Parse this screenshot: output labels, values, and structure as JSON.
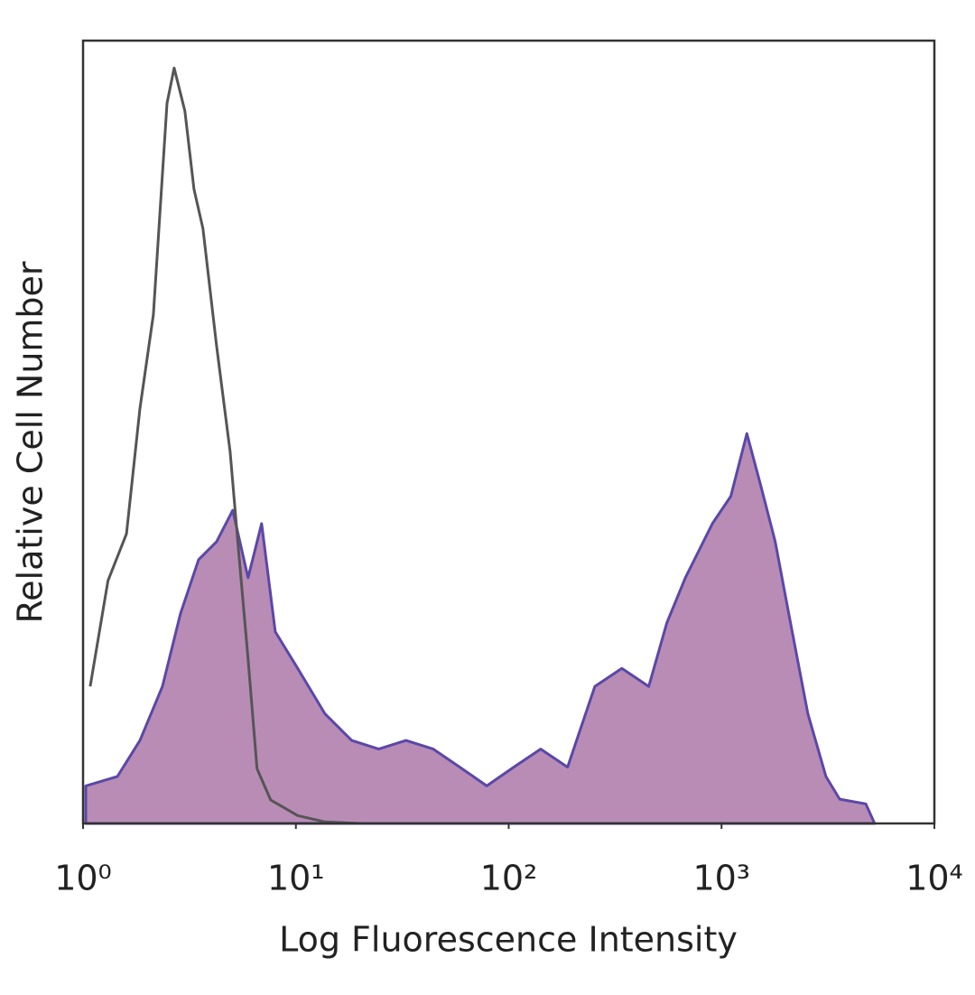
{
  "chart_data": {
    "type": "histogram-overlay",
    "xlabel": "Log Fluorescence Intensity",
    "ylabel": "Relative Cell Number",
    "xscale": "log",
    "xlim": [
      1,
      10000
    ],
    "ylim": [
      0,
      100
    ],
    "xticks": [
      {
        "value": 1,
        "label": "10⁰"
      },
      {
        "value": 10,
        "label": "10¹"
      },
      {
        "value": 100,
        "label": "10²"
      },
      {
        "value": 1000,
        "label": "10³"
      },
      {
        "value": 10000,
        "label": "10⁴"
      }
    ],
    "series": [
      {
        "color": "#5a48a8",
        "fill": "#b98cb6",
        "x": [
          1.03,
          1.45,
          1.85,
          2.36,
          2.87,
          3.49,
          4.24,
          5.05,
          5.96,
          6.9,
          8.0,
          10.2,
          13.7,
          18.3,
          24.5,
          32.9,
          44.2,
          58.9,
          78.9,
          105.6,
          141.3,
          189,
          254,
          340,
          455,
          553,
          676,
          906,
          1105,
          1315,
          1537,
          1788,
          2069,
          2546,
          3094,
          3590,
          4760,
          5236
        ],
        "values": [
          4.8,
          6,
          10.6,
          17.5,
          26.8,
          33.7,
          36,
          40,
          31.4,
          38.3,
          24.5,
          19.8,
          14,
          10.6,
          9.5,
          10.6,
          9.5,
          7.2,
          4.8,
          7.2,
          9.5,
          7.2,
          17.5,
          19.8,
          17.5,
          25.6,
          31.4,
          38.3,
          41.8,
          49.8,
          42.9,
          36,
          26.8,
          14,
          6,
          3.1,
          2.5,
          0
        ]
      },
      {
        "color": "#555555",
        "fill": "none",
        "x": [
          1.08,
          1.31,
          1.6,
          1.85,
          2.14,
          2.48,
          2.68,
          3.01,
          3.32,
          3.66,
          4.24,
          4.91,
          5.41,
          5.96,
          6.57,
          7.61,
          10.2,
          13.7,
          20.2
        ],
        "values": [
          17.5,
          31,
          37,
          53,
          65,
          92,
          96.5,
          91,
          81,
          76,
          61,
          47.5,
          34,
          21,
          7,
          3,
          1,
          0.2,
          0
        ]
      }
    ]
  }
}
